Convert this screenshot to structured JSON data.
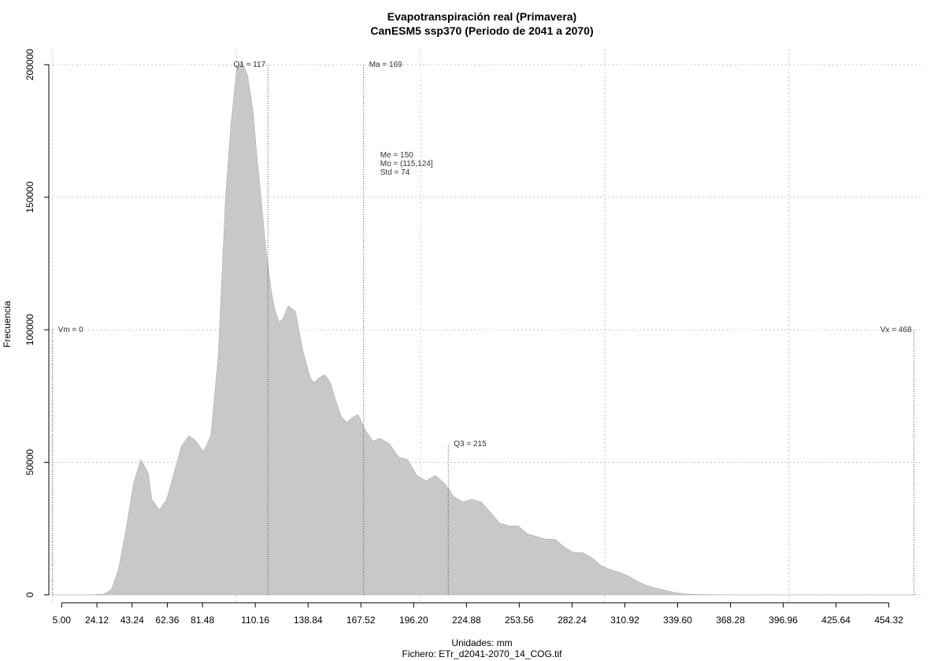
{
  "chart_data": {
    "type": "area",
    "title": "Evapotranspiración real (Primavera)",
    "subtitle": "CanESM5 ssp370 (Periodo de 2041 a 2070)",
    "xlabel": "Unidades: mm",
    "footer": "Fichero: ETr_d2041-2070_14_COG.tif",
    "ylabel": "Frecuencia",
    "xlim": [
      -2,
      472
    ],
    "ylim": [
      -3000,
      206000
    ],
    "grid": true,
    "x_ticks": [
      5.0,
      24.12,
      43.24,
      62.36,
      81.48,
      110.16,
      138.84,
      167.52,
      196.2,
      224.88,
      253.56,
      282.24,
      310.92,
      339.6,
      368.28,
      396.96,
      425.64,
      454.32
    ],
    "x_tick_labels": [
      "5.00",
      "24.12",
      "43.24",
      "62.36",
      "81.48",
      "110.16",
      "138.84",
      "167.52",
      "196.20",
      "224.88",
      "253.56",
      "282.24",
      "310.92",
      "339.60",
      "368.28",
      "396.96",
      "425.64",
      "454.32"
    ],
    "y_ticks": [
      0,
      50000,
      100000,
      150000,
      200000
    ],
    "y_tick_labels": [
      "0",
      "50000",
      "100000",
      "150000",
      "200000"
    ],
    "x_grid": [
      0,
      100,
      200,
      300,
      400
    ],
    "fill_color": "#c8c8c8",
    "series": [
      {
        "x": [
          0,
          5,
          10,
          20,
          28,
          32,
          36,
          40,
          44,
          48,
          52,
          54,
          58,
          62,
          66,
          70,
          74,
          78,
          82,
          86,
          90,
          94,
          97,
          100,
          103,
          106,
          109,
          111,
          113,
          116,
          119,
          121,
          123,
          125,
          128,
          132,
          136,
          140,
          142,
          145,
          148,
          151,
          154,
          157,
          160,
          163,
          166,
          170,
          174,
          178,
          183,
          188,
          193,
          198,
          203,
          208,
          213,
          218,
          223,
          228,
          233,
          238,
          243,
          248,
          253,
          258,
          263,
          268,
          273,
          278,
          283,
          288,
          293,
          298,
          303,
          308,
          313,
          318,
          323,
          328,
          333,
          338,
          343,
          348,
          353,
          358,
          363,
          368,
          373,
          378,
          383,
          388,
          393,
          398,
          403,
          408,
          413,
          418,
          423,
          428,
          433,
          438,
          443,
          448,
          453,
          458,
          463,
          468
        ],
        "values": [
          0,
          0,
          0,
          0,
          300,
          2000,
          10000,
          25000,
          42000,
          51000,
          46000,
          36000,
          32000,
          36000,
          46000,
          56000,
          60000,
          58000,
          54000,
          60000,
          90000,
          150000,
          178000,
          198000,
          201000,
          196000,
          182000,
          166000,
          152000,
          130000,
          114000,
          107000,
          103000,
          104000,
          109000,
          107000,
          92000,
          82000,
          80000,
          82000,
          83000,
          80000,
          73000,
          67000,
          65000,
          67000,
          68000,
          62000,
          58000,
          59000,
          57000,
          52000,
          51000,
          45000,
          43000,
          45000,
          42000,
          37000,
          35000,
          36000,
          35000,
          31000,
          27000,
          26000,
          26000,
          23000,
          22000,
          21000,
          21000,
          18000,
          16000,
          16000,
          14000,
          11000,
          9500,
          8500,
          7000,
          5000,
          3500,
          2500,
          1700,
          900,
          400,
          200,
          100,
          50,
          20,
          0,
          0,
          0,
          0,
          0,
          0,
          0,
          0,
          0,
          0,
          0,
          0,
          0,
          0,
          0,
          0,
          0,
          0,
          0,
          0,
          0
        ]
      }
    ],
    "markers": [
      {
        "label": "Vm = 0",
        "x": 0,
        "y_top": 100000,
        "label_pos": "right"
      },
      {
        "label": "Q1 = 117",
        "x": 117,
        "y_top": 200000,
        "label_pos": "left"
      },
      {
        "label": "Ma = 169",
        "x": 169,
        "y_top": 200000,
        "label_pos": "right"
      },
      {
        "label": "Q3 = 215",
        "x": 215,
        "y_top": 57000,
        "label_pos": "right"
      },
      {
        "label": "Vx = 468",
        "x": 468,
        "y_top": 100000,
        "label_pos": "left"
      }
    ],
    "stats": [
      "Me = 150",
      "Mo = (115,124]",
      "Std = 74"
    ],
    "stats_anchor": {
      "x": 178,
      "y": 165000
    }
  }
}
